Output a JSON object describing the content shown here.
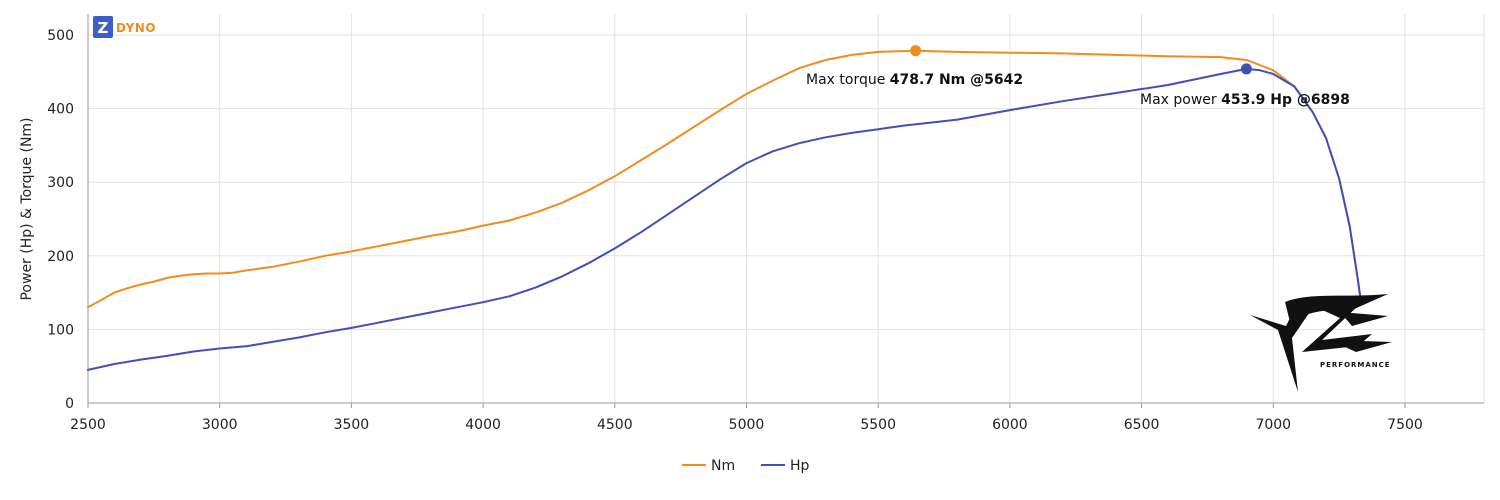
{
  "brand": {
    "badge_letter": "Z",
    "name": "DYNO"
  },
  "watermark": {
    "text": "PERFORMANCE"
  },
  "colors": {
    "torque": "#f28c1e",
    "power": "#3f51b5",
    "grid": "#e2e2e2",
    "axis": "#9a9a9a",
    "brand_blue": "#3a5fc8"
  },
  "chart_data": {
    "type": "line",
    "xlabel": "",
    "ylabel": "Power (Hp) & Torque (Nm)",
    "xlim": [
      2500,
      7800
    ],
    "ylim": [
      0,
      500
    ],
    "x_ticks": [
      2500,
      3000,
      3500,
      4000,
      4500,
      5000,
      5500,
      6000,
      6500,
      7000,
      7500
    ],
    "y_ticks": [
      0,
      100,
      200,
      300,
      400,
      500
    ],
    "grid": true,
    "legend_position": "bottom-center",
    "series": [
      {
        "name": "Nm",
        "color": "#f28c1e",
        "points": [
          [
            2500,
            130
          ],
          [
            2550,
            140
          ],
          [
            2600,
            150
          ],
          [
            2650,
            156
          ],
          [
            2700,
            161
          ],
          [
            2750,
            165
          ],
          [
            2800,
            170
          ],
          [
            2850,
            173
          ],
          [
            2900,
            175
          ],
          [
            2950,
            176
          ],
          [
            3000,
            176
          ],
          [
            3050,
            177
          ],
          [
            3100,
            180
          ],
          [
            3200,
            185
          ],
          [
            3300,
            192
          ],
          [
            3400,
            200
          ],
          [
            3500,
            206
          ],
          [
            3600,
            213
          ],
          [
            3700,
            220
          ],
          [
            3800,
            227
          ],
          [
            3900,
            233
          ],
          [
            4000,
            241
          ],
          [
            4100,
            248
          ],
          [
            4200,
            259
          ],
          [
            4300,
            272
          ],
          [
            4400,
            289
          ],
          [
            4500,
            308
          ],
          [
            4600,
            330
          ],
          [
            4700,
            352
          ],
          [
            4800,
            375
          ],
          [
            4900,
            398
          ],
          [
            5000,
            420
          ],
          [
            5100,
            438
          ],
          [
            5200,
            455
          ],
          [
            5300,
            466
          ],
          [
            5400,
            473
          ],
          [
            5500,
            477
          ],
          [
            5642,
            478.7
          ],
          [
            5800,
            477
          ],
          [
            6000,
            476
          ],
          [
            6200,
            475
          ],
          [
            6400,
            473
          ],
          [
            6600,
            471
          ],
          [
            6800,
            470
          ],
          [
            6900,
            466
          ],
          [
            7000,
            452
          ],
          [
            7080,
            430
          ],
          [
            7150,
            395
          ],
          [
            7200,
            360
          ],
          [
            7250,
            305
          ],
          [
            7290,
            240
          ],
          [
            7320,
            170
          ],
          [
            7330,
            145
          ]
        ]
      },
      {
        "name": "Hp",
        "color": "#3f51b5",
        "points": [
          [
            2500,
            45
          ],
          [
            2600,
            53
          ],
          [
            2700,
            59
          ],
          [
            2800,
            64
          ],
          [
            2900,
            70
          ],
          [
            3000,
            74
          ],
          [
            3100,
            77
          ],
          [
            3200,
            83
          ],
          [
            3300,
            89
          ],
          [
            3400,
            96
          ],
          [
            3500,
            102
          ],
          [
            3600,
            109
          ],
          [
            3700,
            116
          ],
          [
            3800,
            123
          ],
          [
            3900,
            130
          ],
          [
            4000,
            137
          ],
          [
            4100,
            145
          ],
          [
            4200,
            157
          ],
          [
            4300,
            172
          ],
          [
            4400,
            190
          ],
          [
            4500,
            210
          ],
          [
            4600,
            232
          ],
          [
            4700,
            256
          ],
          [
            4800,
            280
          ],
          [
            4900,
            304
          ],
          [
            5000,
            326
          ],
          [
            5100,
            342
          ],
          [
            5200,
            353
          ],
          [
            5300,
            361
          ],
          [
            5400,
            367
          ],
          [
            5500,
            372
          ],
          [
            5600,
            377
          ],
          [
            5700,
            381
          ],
          [
            5800,
            385
          ],
          [
            6000,
            398
          ],
          [
            6200,
            410
          ],
          [
            6400,
            421
          ],
          [
            6600,
            432
          ],
          [
            6800,
            447
          ],
          [
            6898,
            453.9
          ],
          [
            6950,
            452
          ],
          [
            7000,
            447
          ],
          [
            7080,
            430
          ],
          [
            7150,
            395
          ],
          [
            7200,
            360
          ],
          [
            7250,
            305
          ],
          [
            7290,
            240
          ],
          [
            7320,
            170
          ],
          [
            7330,
            145
          ]
        ]
      }
    ],
    "annotations": [
      {
        "series": "Nm",
        "label": "Max torque",
        "value": "478.7 Nm @5642",
        "x": 5642,
        "y": 478.7
      },
      {
        "series": "Hp",
        "label": "Max power",
        "value": "453.9 Hp @6898",
        "x": 6898,
        "y": 453.9
      }
    ]
  }
}
